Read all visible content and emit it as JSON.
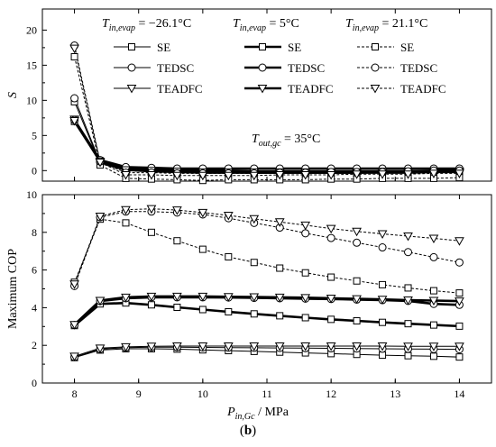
{
  "caption": {
    "open": "(",
    "letter": "b",
    "close": ")"
  },
  "legend": {
    "groups": [
      {
        "prefix": "T",
        "sub": "in,evap",
        "value": " = −26.1°C",
        "style": "thin"
      },
      {
        "prefix": "T",
        "sub": "in,evap",
        "value": " = 5°C",
        "style": "thick"
      },
      {
        "prefix": "T",
        "sub": "in,evap",
        "value": " = 21.1°C",
        "style": "dashed"
      }
    ],
    "items": [
      "SE",
      "TEDSC",
      "TEADFC"
    ],
    "note": {
      "prefix": "T",
      "sub": "out,gc",
      "value": " = 35°C"
    }
  },
  "chart_data": [
    {
      "type": "line",
      "panel": "top",
      "ylabel": "S",
      "xlim": [
        7.5,
        14.5
      ],
      "ylim": [
        -1.5,
        23
      ],
      "xticks": [
        8,
        9,
        10,
        11,
        12,
        13,
        14
      ],
      "yticks": [
        0,
        5,
        10,
        15,
        20
      ],
      "x": [
        8,
        8.4,
        8.8,
        9.2,
        9.6,
        10,
        10.4,
        10.8,
        11.2,
        11.6,
        12,
        12.4,
        12.8,
        13.2,
        13.6,
        14
      ],
      "series": [
        {
          "name": "SE",
          "group": 0,
          "marker": "square",
          "values": [
            9.8,
            1.0,
            0.0,
            -0.1,
            -0.2,
            -0.3,
            -0.3,
            -0.4,
            -0.4,
            -0.4,
            -0.4,
            -0.4,
            -0.3,
            -0.3,
            -0.2,
            -0.2
          ]
        },
        {
          "name": "TEDSC",
          "group": 0,
          "marker": "circle",
          "values": [
            10.3,
            1.2,
            0.1,
            0.0,
            -0.1,
            -0.1,
            -0.2,
            -0.2,
            -0.2,
            -0.2,
            -0.2,
            -0.1,
            -0.1,
            0.0,
            0.0,
            0.0
          ]
        },
        {
          "name": "TEADFC",
          "group": 0,
          "marker": "triangle",
          "values": [
            7.3,
            1.2,
            0.0,
            -0.2,
            -0.3,
            -0.4,
            -0.4,
            -0.4,
            -0.4,
            -0.4,
            -0.4,
            -0.4,
            -0.4,
            -0.4,
            -0.3,
            -0.3
          ]
        },
        {
          "name": "SE",
          "group": 1,
          "marker": "square",
          "values": [
            7.0,
            1.4,
            0.3,
            0.2,
            0.1,
            0.0,
            0.0,
            -0.1,
            -0.1,
            -0.1,
            -0.1,
            -0.1,
            -0.1,
            -0.1,
            0.0,
            0.0
          ]
        },
        {
          "name": "TEDSC",
          "group": 1,
          "marker": "circle",
          "values": [
            7.2,
            1.5,
            0.5,
            0.4,
            0.3,
            0.3,
            0.3,
            0.3,
            0.3,
            0.3,
            0.3,
            0.3,
            0.3,
            0.3,
            0.3,
            0.3
          ]
        },
        {
          "name": "TEADFC",
          "group": 1,
          "marker": "triangle",
          "values": [
            7.1,
            1.3,
            0.1,
            0.0,
            -0.1,
            -0.2,
            -0.2,
            -0.2,
            -0.2,
            -0.2,
            -0.2,
            -0.2,
            -0.1,
            -0.1,
            -0.1,
            -0.1
          ]
        },
        {
          "name": "SE",
          "group": 2,
          "marker": "square",
          "values": [
            16.2,
            0.8,
            -1.1,
            -1.2,
            -1.3,
            -1.4,
            -1.3,
            -1.3,
            -1.3,
            -1.3,
            -1.2,
            -1.2,
            -1.1,
            -1.1,
            -1.1,
            -1.0
          ]
        },
        {
          "name": "TEDSC",
          "group": 2,
          "marker": "circle",
          "values": [
            17.8,
            1.3,
            -0.3,
            -0.3,
            -0.4,
            -0.4,
            -0.4,
            -0.4,
            -0.3,
            -0.3,
            -0.2,
            -0.2,
            -0.2,
            -0.1,
            0.0,
            0.0
          ]
        },
        {
          "name": "TEADFC",
          "group": 2,
          "marker": "triangle",
          "values": [
            17.4,
            1.2,
            -0.6,
            -0.6,
            -0.7,
            -0.7,
            -0.7,
            -0.7,
            -0.6,
            -0.6,
            -0.6,
            -0.5,
            -0.5,
            -0.5,
            -0.4,
            -0.4
          ]
        }
      ]
    },
    {
      "type": "line",
      "panel": "bottom",
      "xlabel": {
        "prefix": "P",
        "sub": "in,Gc",
        "suffix": " / MPa"
      },
      "ylabel": "Maximum COP",
      "xlim": [
        7.5,
        14.5
      ],
      "ylim": [
        0,
        10
      ],
      "xticks": [
        8,
        9,
        10,
        11,
        12,
        13,
        14
      ],
      "yticks": [
        0,
        2,
        4,
        6,
        8,
        10
      ],
      "x": [
        8,
        8.4,
        8.8,
        9.2,
        9.6,
        10,
        10.4,
        10.8,
        11.2,
        11.6,
        12,
        12.4,
        12.8,
        13.2,
        13.6,
        14
      ],
      "series": [
        {
          "name": "SE",
          "group": 0,
          "marker": "square",
          "values": [
            1.35,
            1.75,
            1.82,
            1.82,
            1.8,
            1.76,
            1.72,
            1.68,
            1.64,
            1.6,
            1.56,
            1.52,
            1.48,
            1.45,
            1.42,
            1.38
          ]
        },
        {
          "name": "TEDSC",
          "group": 0,
          "marker": "circle",
          "values": [
            1.38,
            1.8,
            1.88,
            1.9,
            1.9,
            1.89,
            1.88,
            1.87,
            1.86,
            1.85,
            1.84,
            1.83,
            1.82,
            1.81,
            1.8,
            1.79
          ]
        },
        {
          "name": "TEADFC",
          "group": 0,
          "marker": "triangle",
          "values": [
            1.42,
            1.85,
            1.92,
            1.95,
            1.96,
            1.96,
            1.96,
            1.96,
            1.96,
            1.96,
            1.96,
            1.96,
            1.96,
            1.95,
            1.95,
            1.95
          ]
        },
        {
          "name": "SE",
          "group": 1,
          "marker": "square",
          "values": [
            3.05,
            4.2,
            4.25,
            4.15,
            4.02,
            3.9,
            3.78,
            3.67,
            3.57,
            3.47,
            3.38,
            3.3,
            3.22,
            3.15,
            3.08,
            3.02
          ]
        },
        {
          "name": "TEDSC",
          "group": 1,
          "marker": "circle",
          "values": [
            3.08,
            4.35,
            4.5,
            4.55,
            4.55,
            4.55,
            4.54,
            4.52,
            4.5,
            4.48,
            4.46,
            4.43,
            4.4,
            4.36,
            4.2,
            4.15
          ]
        },
        {
          "name": "TEADFC",
          "group": 1,
          "marker": "triangle",
          "values": [
            3.1,
            4.38,
            4.55,
            4.6,
            4.6,
            4.6,
            4.58,
            4.57,
            4.55,
            4.53,
            4.5,
            4.47,
            4.44,
            4.4,
            4.38,
            4.35
          ]
        },
        {
          "name": "SE",
          "group": 2,
          "marker": "square",
          "values": [
            5.35,
            8.7,
            8.5,
            8.0,
            7.55,
            7.1,
            6.7,
            6.4,
            6.1,
            5.85,
            5.62,
            5.42,
            5.22,
            5.05,
            4.9,
            4.78
          ]
        },
        {
          "name": "TEDSC",
          "group": 2,
          "marker": "circle",
          "values": [
            5.15,
            8.8,
            9.1,
            9.1,
            9.05,
            8.95,
            8.75,
            8.5,
            8.25,
            7.95,
            7.7,
            7.45,
            7.2,
            6.95,
            6.68,
            6.4
          ]
        },
        {
          "name": "TEADFC",
          "group": 2,
          "marker": "triangle",
          "values": [
            5.25,
            8.85,
            9.2,
            9.25,
            9.18,
            9.05,
            8.9,
            8.72,
            8.55,
            8.38,
            8.2,
            8.05,
            7.92,
            7.8,
            7.68,
            7.55
          ]
        }
      ]
    }
  ]
}
